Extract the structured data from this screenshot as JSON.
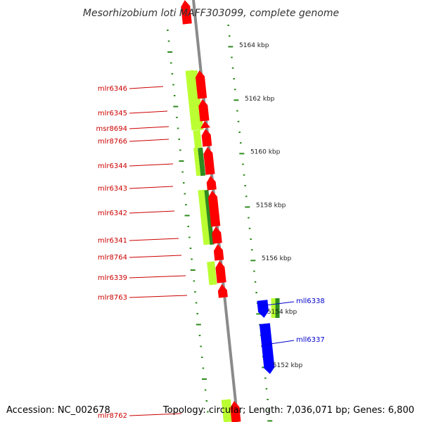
{
  "title": "Mesorhizobium loti MAFF303099, complete genome",
  "accession": "Accession: NC_002678",
  "topology": "Topology: circular; Length: 7,036,071 bp; Genes: 6,800",
  "kbp_ticks": [
    {
      "label": "5164 kbp",
      "kbp": 5164
    },
    {
      "label": "5162 kbp",
      "kbp": 5162
    },
    {
      "label": "5160 kbp",
      "kbp": 5160
    },
    {
      "label": "5158 kbp",
      "kbp": 5158
    },
    {
      "label": "5156 kbp",
      "kbp": 5156
    },
    {
      "label": "5154 kbp",
      "kbp": 5154
    },
    {
      "label": "5152 kbp",
      "kbp": 5152
    }
  ],
  "forward_genes": [
    {
      "name": "mlr6346"
    },
    {
      "name": "mlr6345"
    },
    {
      "name": "msr8694"
    },
    {
      "name": "mlr8766"
    },
    {
      "name": "mlr6344"
    },
    {
      "name": "mlr6343"
    },
    {
      "name": "mlr6342"
    },
    {
      "name": "mlr6341"
    },
    {
      "name": "mlr8764"
    },
    {
      "name": "mlr6339"
    },
    {
      "name": "mlr8763"
    },
    {
      "name": "mlr8762"
    }
  ],
  "reverse_genes": [
    {
      "name": "mll6338"
    },
    {
      "name": "mll6337"
    }
  ],
  "colors": {
    "forward_gene": "#ff0000",
    "reverse_gene": "#0000ff",
    "cds_light": "#bbff33",
    "cds_dark": "#2e8b1e",
    "backbone": "#8a8a8a",
    "tick": "#2e8b1e",
    "forward_label": "#cc0000",
    "reverse_label": "#0000cc"
  }
}
